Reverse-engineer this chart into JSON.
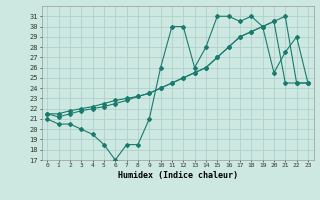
{
  "title": "",
  "xlabel": "Humidex (Indice chaleur)",
  "bg_color": "#cce8e0",
  "grid_color": "#aacccc",
  "line_color": "#1a7a6e",
  "xlim": [
    -0.5,
    23.5
  ],
  "ylim": [
    17,
    32
  ],
  "yticks": [
    17,
    18,
    19,
    20,
    21,
    22,
    23,
    24,
    25,
    26,
    27,
    28,
    29,
    30,
    31
  ],
  "xticks": [
    0,
    1,
    2,
    3,
    4,
    5,
    6,
    7,
    8,
    9,
    10,
    11,
    12,
    13,
    14,
    15,
    16,
    17,
    18,
    19,
    20,
    21,
    22,
    23
  ],
  "series1_x": [
    0,
    1,
    2,
    3,
    4,
    5,
    6,
    7,
    8,
    9,
    10,
    11,
    12,
    13,
    14,
    15,
    16,
    17,
    18,
    19,
    20,
    21,
    22,
    23
  ],
  "series1_y": [
    21.0,
    20.5,
    20.5,
    20.0,
    19.5,
    18.5,
    17.0,
    18.5,
    18.5,
    21.0,
    26.0,
    30.0,
    30.0,
    26.0,
    28.0,
    31.0,
    31.0,
    30.5,
    31.0,
    30.0,
    25.5,
    27.5,
    29.0,
    24.5
  ],
  "series2_x": [
    0,
    1,
    2,
    3,
    4,
    5,
    6,
    7,
    8,
    9,
    10,
    11,
    12,
    13,
    14,
    15,
    16,
    17,
    18,
    19,
    20,
    21,
    22,
    23
  ],
  "series2_y": [
    21.5,
    21.2,
    21.5,
    21.8,
    22.0,
    22.2,
    22.5,
    22.8,
    23.2,
    23.5,
    24.0,
    24.5,
    25.0,
    25.5,
    26.0,
    27.0,
    28.0,
    29.0,
    29.5,
    30.0,
    30.5,
    31.0,
    24.5,
    24.5
  ],
  "series3_x": [
    0,
    1,
    2,
    3,
    4,
    5,
    6,
    7,
    8,
    9,
    10,
    11,
    12,
    13,
    14,
    15,
    16,
    17,
    18,
    19,
    20,
    21,
    22,
    23
  ],
  "series3_y": [
    21.5,
    21.5,
    21.8,
    22.0,
    22.2,
    22.5,
    22.8,
    23.0,
    23.2,
    23.5,
    24.0,
    24.5,
    25.0,
    25.5,
    26.0,
    27.0,
    28.0,
    29.0,
    29.5,
    30.0,
    30.5,
    24.5,
    24.5,
    24.5
  ]
}
